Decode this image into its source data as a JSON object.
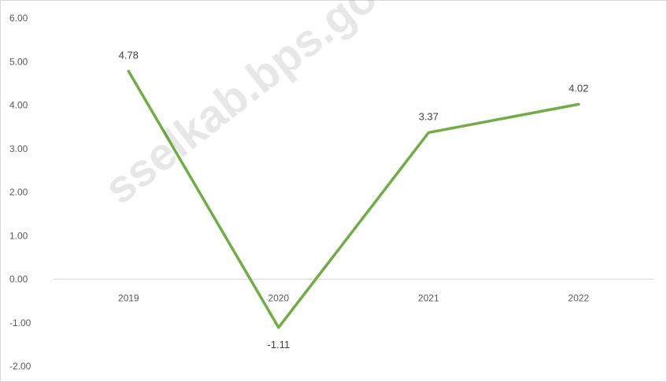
{
  "chart_data": {
    "type": "line",
    "categories": [
      "2019",
      "2020",
      "2021",
      "2022"
    ],
    "series": [
      {
        "values": [
          4.78,
          -1.11,
          3.37,
          4.02
        ],
        "color": "#70ad47"
      }
    ],
    "data_labels": [
      "4.78",
      "-1.11",
      "3.37",
      "4.02"
    ],
    "y_ticks": [
      "6.00",
      "5.00",
      "4.00",
      "3.00",
      "2.00",
      "1.00",
      "0.00",
      "-1.00",
      "-2.00"
    ],
    "ylim": [
      -2,
      6
    ],
    "grid": false,
    "title": "",
    "xlabel": "",
    "ylabel": ""
  },
  "watermark": "sselkab.bps.go.id"
}
